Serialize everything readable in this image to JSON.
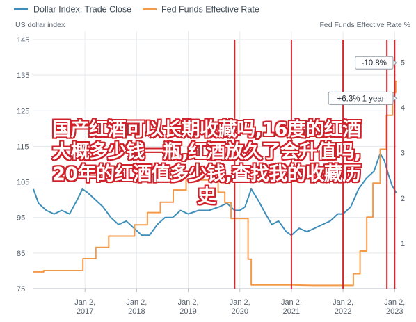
{
  "chart_data": {
    "type": "line",
    "legend": {
      "placement": "top-left",
      "entries": [
        {
          "label": "Dollar Index, Trade Close",
          "color": "#3d8eb9"
        },
        {
          "label": "Fed Funds Effective Rate",
          "color": "#f39a4a"
        }
      ]
    },
    "y_left": {
      "label": "US dollar index",
      "ticks": [
        75,
        85,
        95,
        105,
        115,
        125,
        135,
        145
      ],
      "range": [
        75,
        145
      ]
    },
    "y_right": {
      "label": "Fed Funds Effective Rate %",
      "ticks": [
        1,
        2,
        3,
        4,
        5
      ],
      "range": [
        0,
        5.5
      ]
    },
    "x_ticks": [
      {
        "line1": "Jan 2,",
        "line2": "2017",
        "x": 2017.0
      },
      {
        "line1": "Jan 2,",
        "line2": "2018",
        "x": 2018.0
      },
      {
        "line1": "Jan 2,",
        "line2": "2019",
        "x": 2019.0
      },
      {
        "line1": "Jan 2,",
        "line2": "2020",
        "x": 2020.0
      },
      {
        "line1": "Jan 2,",
        "line2": "2021",
        "x": 2021.0
      },
      {
        "line1": "Jan 2,",
        "line2": "2022",
        "x": 2022.0
      },
      {
        "line1": "Jan 2,",
        "line2": "2023",
        "x": 2023.0
      }
    ],
    "x_range": [
      2016.0,
      2023.05
    ],
    "grid": true,
    "series": [
      {
        "name": "Dollar Index, Trade Close",
        "axis": "left",
        "color": "#3d8eb9",
        "points": [
          [
            2016.0,
            103
          ],
          [
            2016.1,
            99
          ],
          [
            2016.25,
            97
          ],
          [
            2016.4,
            96
          ],
          [
            2016.55,
            97
          ],
          [
            2016.7,
            96
          ],
          [
            2016.85,
            100
          ],
          [
            2016.95,
            103
          ],
          [
            2017.05,
            102
          ],
          [
            2017.2,
            100
          ],
          [
            2017.35,
            98
          ],
          [
            2017.5,
            95
          ],
          [
            2017.65,
            93
          ],
          [
            2017.8,
            94
          ],
          [
            2017.95,
            92
          ],
          [
            2018.1,
            90
          ],
          [
            2018.25,
            90
          ],
          [
            2018.4,
            93
          ],
          [
            2018.55,
            95
          ],
          [
            2018.7,
            95
          ],
          [
            2018.85,
            97
          ],
          [
            2019.0,
            96
          ],
          [
            2019.2,
            97
          ],
          [
            2019.4,
            97
          ],
          [
            2019.6,
            98
          ],
          [
            2019.75,
            99
          ],
          [
            2019.9,
            97
          ],
          [
            2020.0,
            97
          ],
          [
            2020.1,
            98
          ],
          [
            2020.22,
            103
          ],
          [
            2020.35,
            100
          ],
          [
            2020.5,
            96
          ],
          [
            2020.62,
            93
          ],
          [
            2020.75,
            94
          ],
          [
            2020.9,
            91
          ],
          [
            2021.0,
            90
          ],
          [
            2021.15,
            92
          ],
          [
            2021.3,
            91
          ],
          [
            2021.45,
            92
          ],
          [
            2021.6,
            93
          ],
          [
            2021.75,
            94
          ],
          [
            2021.9,
            96
          ],
          [
            2022.0,
            96
          ],
          [
            2022.15,
            98
          ],
          [
            2022.3,
            103
          ],
          [
            2022.45,
            106
          ],
          [
            2022.6,
            108
          ],
          [
            2022.72,
            113
          ],
          [
            2022.8,
            111
          ],
          [
            2022.88,
            107
          ],
          [
            2022.95,
            104
          ],
          [
            2023.03,
            102
          ]
        ]
      },
      {
        "name": "Fed Funds Effective Rate",
        "axis": "right",
        "color": "#f39a4a",
        "points": [
          [
            2016.0,
            0.37
          ],
          [
            2016.2,
            0.37
          ],
          [
            2016.2,
            0.4
          ],
          [
            2016.96,
            0.4
          ],
          [
            2016.96,
            0.66
          ],
          [
            2017.21,
            0.66
          ],
          [
            2017.21,
            0.91
          ],
          [
            2017.46,
            0.91
          ],
          [
            2017.46,
            1.16
          ],
          [
            2017.96,
            1.16
          ],
          [
            2017.96,
            1.41
          ],
          [
            2018.21,
            1.41
          ],
          [
            2018.21,
            1.68
          ],
          [
            2018.46,
            1.68
          ],
          [
            2018.46,
            1.91
          ],
          [
            2018.71,
            1.91
          ],
          [
            2018.71,
            2.18
          ],
          [
            2018.96,
            2.18
          ],
          [
            2018.96,
            2.4
          ],
          [
            2019.58,
            2.4
          ],
          [
            2019.58,
            2.13
          ],
          [
            2019.71,
            2.13
          ],
          [
            2019.71,
            1.9
          ],
          [
            2019.83,
            1.9
          ],
          [
            2019.83,
            1.55
          ],
          [
            2020.16,
            1.55
          ],
          [
            2020.16,
            0.65
          ],
          [
            2020.22,
            0.65
          ],
          [
            2020.22,
            0.08
          ],
          [
            2021.0,
            0.08
          ],
          [
            2021.4,
            0.07
          ],
          [
            2022.2,
            0.07
          ],
          [
            2022.2,
            0.33
          ],
          [
            2022.33,
            0.33
          ],
          [
            2022.33,
            0.83
          ],
          [
            2022.46,
            0.83
          ],
          [
            2022.46,
            1.58
          ],
          [
            2022.58,
            1.58
          ],
          [
            2022.58,
            2.33
          ],
          [
            2022.72,
            2.33
          ],
          [
            2022.72,
            3.08
          ],
          [
            2022.84,
            3.08
          ],
          [
            2022.84,
            3.83
          ],
          [
            2022.96,
            3.83
          ],
          [
            2022.96,
            4.33
          ],
          [
            2023.02,
            4.33
          ],
          [
            2023.02,
            4.58
          ],
          [
            2023.05,
            4.58
          ]
        ]
      }
    ],
    "markers": [
      {
        "x": 2019.9,
        "color": "#d8262e"
      },
      {
        "x": 2021.0,
        "color": "#d8262e"
      },
      {
        "x": 2022.0,
        "color": "#d8262e"
      },
      {
        "x": 2022.85,
        "color": "#d8262e"
      },
      {
        "x": 2023.0,
        "color": "#d8262e"
      }
    ],
    "callouts": [
      {
        "text": "-10.8%",
        "y_left": 138.5
      },
      {
        "text": "+6.3% 1 year",
        "y_left": 128.5
      }
    ]
  },
  "overlay_text": {
    "lines": [
      "国产红酒可以长期收藏吗,16度的红酒",
      "大概多少钱一瓶,红酒放久了会升值吗,",
      "20年的红酒值多少钱,查找我的收藏历",
      "史"
    ]
  }
}
